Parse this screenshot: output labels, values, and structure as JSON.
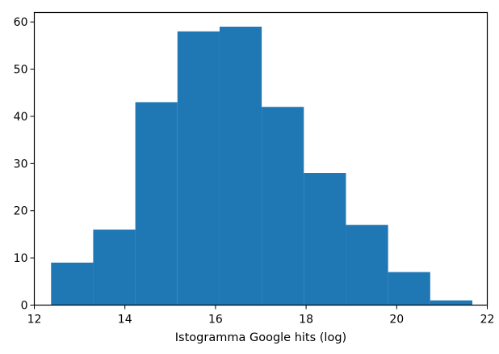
{
  "chart_data": {
    "type": "bar",
    "subtype": "histogram",
    "title": "",
    "xlabel": "Istogramma Google hits (log)",
    "ylabel": "",
    "color": "#1f77b4",
    "xlim": [
      12,
      22
    ],
    "ylim": [
      0,
      62
    ],
    "grid": false,
    "x_ticks": [
      12,
      14,
      16,
      18,
      20,
      22
    ],
    "x_tick_labels": [
      "12",
      "14",
      "16",
      "18",
      "20",
      "22"
    ],
    "y_ticks": [
      0,
      10,
      20,
      30,
      40,
      50,
      60
    ],
    "y_tick_labels": [
      "0",
      "10",
      "20",
      "30",
      "40",
      "50",
      "60"
    ],
    "bin_edges": [
      12.37,
      13.3,
      14.23,
      15.16,
      16.09,
      17.02,
      17.95,
      18.88,
      19.81,
      20.74,
      21.67
    ],
    "values": [
      9,
      16,
      43,
      58,
      59,
      42,
      28,
      17,
      7,
      1
    ]
  }
}
